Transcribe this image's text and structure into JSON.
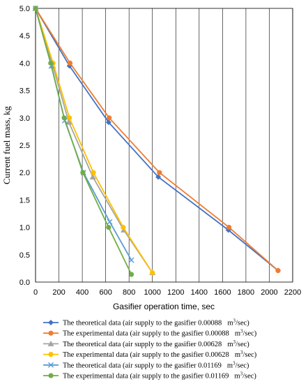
{
  "chart_data": {
    "type": "line",
    "title": "",
    "xlabel": "Gasifier operation time, sec",
    "ylabel": "Current fuel mass, kg",
    "xlim": [
      0,
      2200
    ],
    "ylim": [
      0,
      5.0
    ],
    "xticks": [
      "0",
      "200",
      "400",
      "600",
      "800",
      "1000",
      "1200",
      "1400",
      "1600",
      "1800",
      "2000",
      "2200"
    ],
    "yticks": [
      "0.0",
      "0.5",
      "1.0",
      "1.5",
      "2.0",
      "2.5",
      "3.0",
      "3.5",
      "4.0",
      "4.5",
      "5.0"
    ],
    "grid": "vertical",
    "legend_position": "bottom",
    "series": [
      {
        "name": "The theoretical data  (air supply to the gasifier 0.00088",
        "unit": "m",
        "unit_sup": "3",
        "unit_rest": "/sec)",
        "color": "#4472C4",
        "marker": "diamond",
        "x": [
          0,
          290,
          625,
          1050,
          1650,
          2075
        ],
        "y": [
          5.0,
          3.95,
          2.92,
          1.92,
          0.95,
          0.21
        ]
      },
      {
        "name": "The experimental data  (air supply to the gasifier 0.00088",
        "unit": "m",
        "unit_sup": "3",
        "unit_rest": "/sec)",
        "color": "#ED7D31",
        "marker": "circle",
        "x": [
          0,
          295,
          630,
          1060,
          1655,
          2075
        ],
        "y": [
          5.0,
          4.0,
          3.0,
          2.0,
          1.0,
          0.21
        ]
      },
      {
        "name": "The theoretical data  (air supply to the gasifier 0.00628",
        "unit": "m",
        "unit_sup": "3",
        "unit_rest": "/sec)",
        "color": "#A5A5A5",
        "marker": "triangle",
        "x": [
          0,
          148,
          285,
          490,
          755,
          1000
        ],
        "y": [
          5.0,
          3.95,
          2.92,
          1.92,
          0.95,
          0.17
        ]
      },
      {
        "name": "The experimental data  (air supply to the gasifier 0.00628",
        "unit": "m",
        "unit_sup": "3",
        "unit_rest": "/sec)",
        "color": "#FFC000",
        "marker": "circle",
        "x": [
          0,
          150,
          290,
          495,
          750,
          1000
        ],
        "y": [
          5.0,
          4.0,
          3.0,
          2.0,
          1.0,
          0.17
        ]
      },
      {
        "name": "The theoretical data  (air supply to the gasifier 0.01169",
        "unit": "m",
        "unit_sup": "3",
        "unit_rest": "/sec)",
        "color": "#5B9BD5",
        "marker": "x",
        "x": [
          0,
          135,
          250,
          410,
          635,
          820
        ],
        "y": [
          5.0,
          3.95,
          2.95,
          2.0,
          1.1,
          0.4
        ]
      },
      {
        "name": "The experimental data  (air supply to the gasifier 0.01169",
        "unit": "m",
        "unit_sup": "3",
        "unit_rest": "/sec)",
        "color": "#70AD47",
        "marker": "circle",
        "x": [
          0,
          130,
          245,
          405,
          625,
          820
        ],
        "y": [
          5.0,
          4.0,
          3.0,
          2.0,
          1.0,
          0.14
        ]
      }
    ]
  }
}
